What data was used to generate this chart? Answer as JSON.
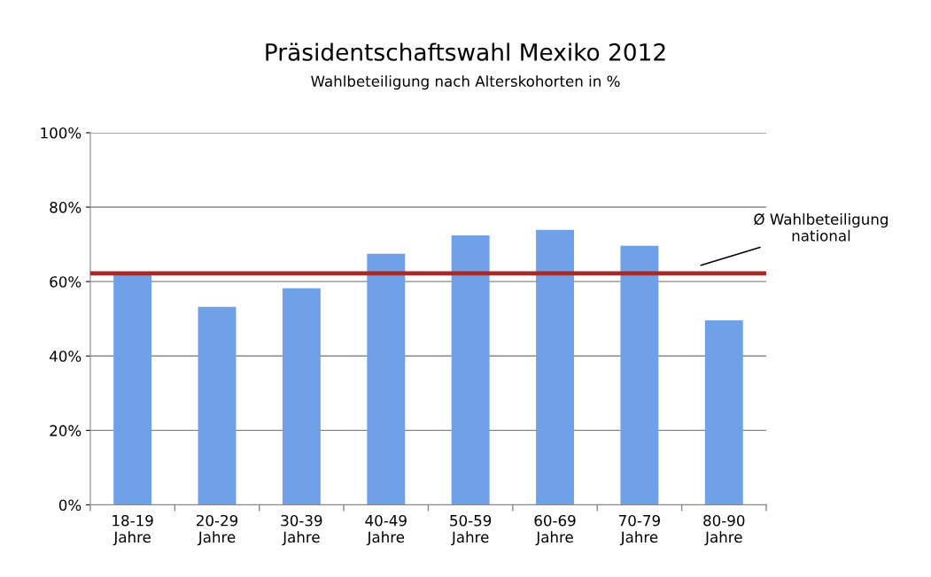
{
  "chart_data": {
    "type": "bar",
    "title": "Präsidentschaftswahl Mexiko 2012",
    "subtitle": "Wahlbeteiligung nach Alterskohorten in %",
    "categories": [
      "18-19\nJahre",
      "20-29\nJahre",
      "30-39\nJahre",
      "40-49\nJahre",
      "50-59\nJahre",
      "60-69\nJahre",
      "70-79\nJahre",
      "80-90\nJahre"
    ],
    "values": [
      62.0,
      53.2,
      58.2,
      67.5,
      72.4,
      73.9,
      69.6,
      49.6
    ],
    "color": "#6fa0e8",
    "ylim": [
      0,
      100
    ],
    "yticks": [
      {
        "value": 0,
        "label": "0%"
      },
      {
        "value": 20,
        "label": "20%"
      },
      {
        "value": 40,
        "label": "40%"
      },
      {
        "value": 60,
        "label": "60%"
      },
      {
        "value": 80,
        "label": "80%"
      },
      {
        "value": 100,
        "label": "100%"
      }
    ],
    "grid": "y",
    "ref_lines": [
      {
        "axis": "y",
        "value": 62.2,
        "label": "Ø Wahlbeteiligung\nnational",
        "color": "#a52a2a",
        "line_style": "solid"
      }
    ]
  }
}
